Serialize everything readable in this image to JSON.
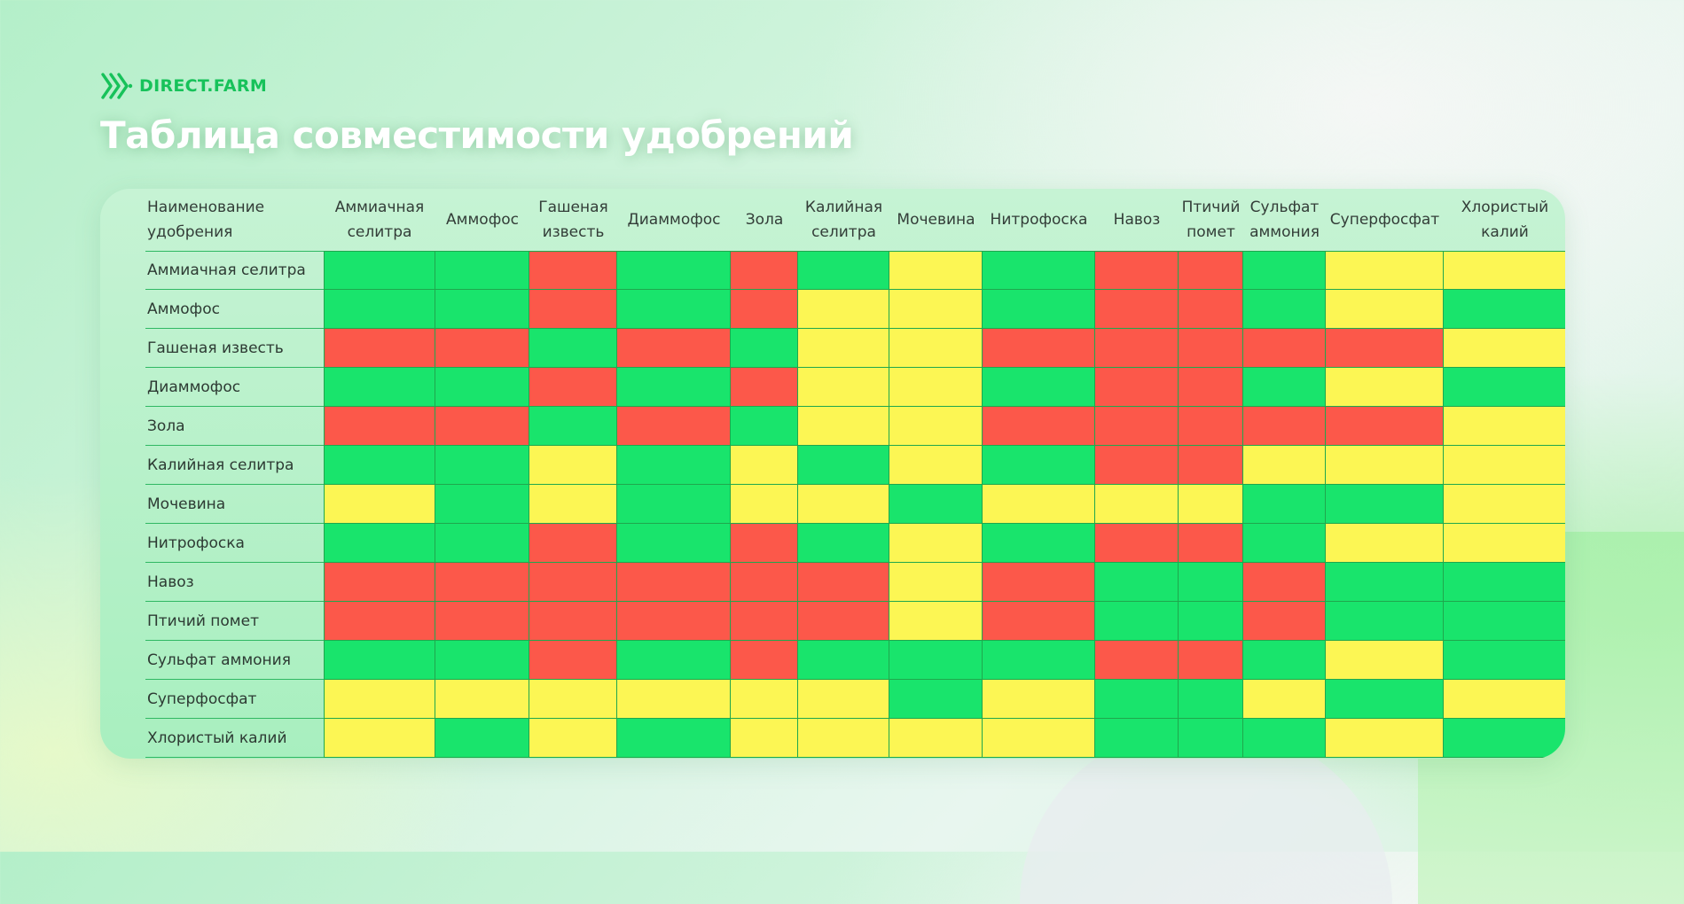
{
  "brand": {
    "name": "DIRECT.FARM",
    "color": "#17c25a"
  },
  "title": "Таблица совместимости удобрений",
  "colors": {
    "compatible": "#19e46c",
    "limited": "#fcf654",
    "incompatible": "#fc584a"
  },
  "chart_data": {
    "type": "heatmap",
    "title": "Таблица совместимости удобрений",
    "corner_label": "Наименование\nудобрения",
    "columns": [
      "Аммиачная\nселитра",
      "Аммофос",
      "Гашеная\nизвесть",
      "Диаммофос",
      "Зола",
      "Калийная\nселитра",
      "Мочевина",
      "Нитрофоска",
      "Навоз",
      "Птичий\nпомет",
      "Сульфат\nаммония",
      "Суперфосфат",
      "Хлористый\nкалий"
    ],
    "rows": [
      "Аммиачная селитра",
      "Аммофос",
      "Гашеная известь",
      "Диаммофос",
      "Зола",
      "Калийная селитра",
      "Мочевина",
      "Нитрофоска",
      "Навоз",
      "Птичий помет",
      "Сульфат аммония",
      "Суперфосфат",
      "Хлористый калий"
    ],
    "value_legend": {
      "G": "compatible",
      "Y": "limited",
      "R": "incompatible"
    },
    "values": [
      [
        "G",
        "G",
        "R",
        "G",
        "R",
        "G",
        "Y",
        "G",
        "R",
        "R",
        "G",
        "Y",
        "Y"
      ],
      [
        "G",
        "G",
        "R",
        "G",
        "R",
        "Y",
        "Y",
        "G",
        "R",
        "R",
        "G",
        "Y",
        "G"
      ],
      [
        "R",
        "R",
        "G",
        "R",
        "G",
        "Y",
        "Y",
        "R",
        "R",
        "R",
        "R",
        "R",
        "Y"
      ],
      [
        "G",
        "G",
        "R",
        "G",
        "R",
        "Y",
        "Y",
        "G",
        "R",
        "R",
        "G",
        "Y",
        "G"
      ],
      [
        "R",
        "R",
        "G",
        "R",
        "G",
        "Y",
        "Y",
        "R",
        "R",
        "R",
        "R",
        "R",
        "Y"
      ],
      [
        "G",
        "G",
        "Y",
        "G",
        "Y",
        "G",
        "Y",
        "G",
        "R",
        "R",
        "Y",
        "Y",
        "Y"
      ],
      [
        "Y",
        "G",
        "Y",
        "G",
        "Y",
        "Y",
        "G",
        "Y",
        "Y",
        "Y",
        "G",
        "G",
        "Y"
      ],
      [
        "G",
        "G",
        "R",
        "G",
        "R",
        "G",
        "Y",
        "G",
        "R",
        "R",
        "G",
        "Y",
        "Y"
      ],
      [
        "R",
        "R",
        "R",
        "R",
        "R",
        "R",
        "Y",
        "R",
        "G",
        "G",
        "R",
        "G",
        "G"
      ],
      [
        "R",
        "R",
        "R",
        "R",
        "R",
        "R",
        "Y",
        "R",
        "G",
        "G",
        "R",
        "G",
        "G"
      ],
      [
        "G",
        "G",
        "R",
        "G",
        "R",
        "G",
        "G",
        "G",
        "R",
        "R",
        "G",
        "Y",
        "G"
      ],
      [
        "Y",
        "Y",
        "Y",
        "Y",
        "Y",
        "Y",
        "G",
        "Y",
        "G",
        "G",
        "Y",
        "G",
        "Y"
      ],
      [
        "Y",
        "G",
        "Y",
        "G",
        "Y",
        "Y",
        "Y",
        "Y",
        "G",
        "G",
        "G",
        "Y",
        "G"
      ]
    ]
  }
}
